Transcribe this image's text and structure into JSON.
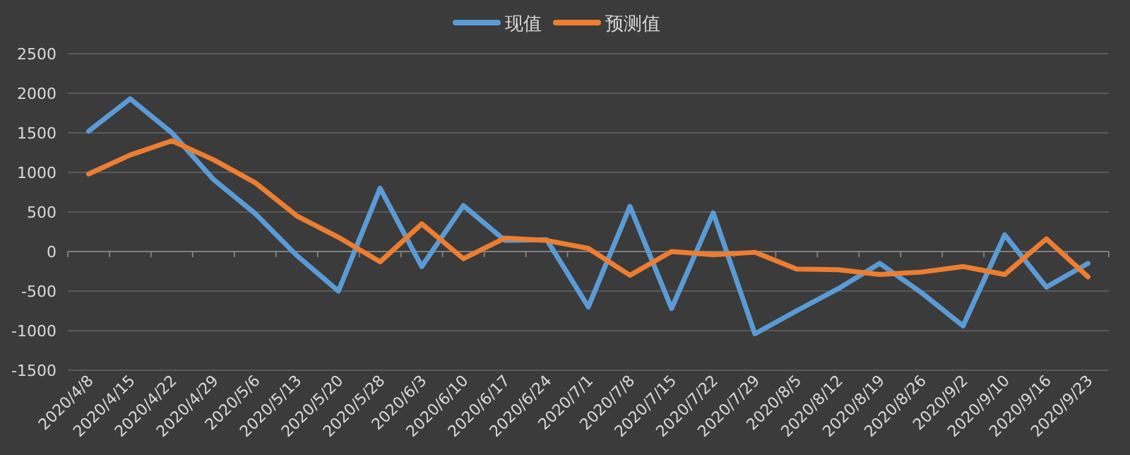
{
  "chart_data": {
    "type": "line",
    "categories": [
      "2020/4/8",
      "2020/4/15",
      "2020/4/22",
      "2020/4/29",
      "2020/5/6",
      "2020/5/13",
      "2020/5/20",
      "2020/5/28",
      "2020/6/3",
      "2020/6/10",
      "2020/6/17",
      "2020/6/24",
      "2020/7/1",
      "2020/7/8",
      "2020/7/15",
      "2020/7/22",
      "2020/7/29",
      "2020/8/5",
      "2020/8/12",
      "2020/8/19",
      "2020/8/26",
      "2020/9/2",
      "2020/9/10",
      "2020/9/16",
      "2020/9/23"
    ],
    "series": [
      {
        "name": "现值",
        "color": "#5b9bd5",
        "values": [
          1520,
          1930,
          1500,
          910,
          480,
          -50,
          -500,
          800,
          -190,
          580,
          140,
          150,
          -700,
          570,
          -720,
          490,
          -1040,
          -750,
          -470,
          -150,
          -520,
          -940,
          210,
          -450,
          -150
        ]
      },
      {
        "name": "预测值",
        "color": "#ed7d31",
        "values": [
          980,
          1220,
          1400,
          1160,
          870,
          450,
          180,
          -130,
          350,
          -90,
          170,
          140,
          40,
          -300,
          0,
          -40,
          -10,
          -220,
          -230,
          -290,
          -260,
          -190,
          -290,
          160,
          -320
        ]
      }
    ],
    "ylim": [
      -1500,
      2500
    ],
    "yticks": [
      -1500,
      -1000,
      -500,
      0,
      500,
      1000,
      1500,
      2000,
      2500
    ],
    "grid": "y",
    "legend": "top",
    "marker": "none",
    "line_style": "solid"
  }
}
